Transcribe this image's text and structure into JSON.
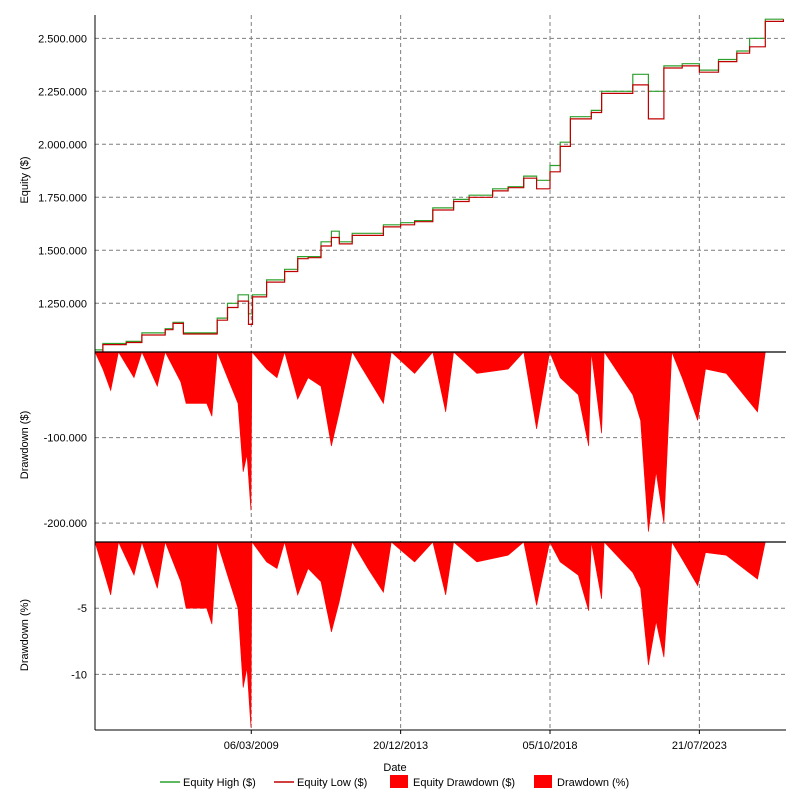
{
  "colors": {
    "equity_high": "#2ca02c",
    "equity_low": "#c00000",
    "drawdown_fill": "#ff0000",
    "grid": "#7f7f7f",
    "axis": "#000000"
  },
  "chart_data": [
    {
      "type": "line",
      "ylabel": "Equity ($)",
      "xlabel": "",
      "grid": true,
      "xlim": [
        "2004-03-01",
        "2026-05-01"
      ],
      "ylim": [
        1020000,
        2610000
      ],
      "yticks": [
        1250000,
        1500000,
        1750000,
        2000000,
        2250000,
        2500000
      ],
      "ytick_labels": [
        "1.250.000",
        "1.500.000",
        "1.750.000",
        "2.000.000",
        "2.250.000",
        "2.500.000"
      ],
      "series": [
        {
          "name": "Equity High ($)",
          "color_key": "equity_high",
          "points": [
            [
              "2004-03-01",
              1030000
            ],
            [
              "2004-06-01",
              1060000
            ],
            [
              "2005-03-01",
              1070000
            ],
            [
              "2005-09-01",
              1110000
            ],
            [
              "2006-06-01",
              1130000
            ],
            [
              "2006-09-01",
              1160000
            ],
            [
              "2007-01-01",
              1110000
            ],
            [
              "2007-10-01",
              1110000
            ],
            [
              "2008-02-01",
              1180000
            ],
            [
              "2008-06-01",
              1250000
            ],
            [
              "2008-10-01",
              1290000
            ],
            [
              "2009-02-01",
              1200000
            ],
            [
              "2009-03-20",
              1290000
            ],
            [
              "2009-09-01",
              1360000
            ],
            [
              "2010-04-01",
              1410000
            ],
            [
              "2010-09-01",
              1470000
            ],
            [
              "2011-01-01",
              1470000
            ],
            [
              "2011-06-01",
              1540000
            ],
            [
              "2011-10-01",
              1590000
            ],
            [
              "2012-01-01",
              1540000
            ],
            [
              "2012-06-01",
              1580000
            ],
            [
              "2013-06-01",
              1620000
            ],
            [
              "2013-12-20",
              1630000
            ],
            [
              "2014-06-01",
              1640000
            ],
            [
              "2015-01-01",
              1700000
            ],
            [
              "2015-09-01",
              1740000
            ],
            [
              "2016-03-01",
              1760000
            ],
            [
              "2016-12-01",
              1790000
            ],
            [
              "2017-06-01",
              1800000
            ],
            [
              "2017-12-01",
              1850000
            ],
            [
              "2018-05-01",
              1830000
            ],
            [
              "2018-10-05",
              1900000
            ],
            [
              "2019-02-01",
              2010000
            ],
            [
              "2019-06-01",
              2130000
            ],
            [
              "2020-02-01",
              2160000
            ],
            [
              "2020-06-01",
              2250000
            ],
            [
              "2021-01-01",
              2250000
            ],
            [
              "2021-06-01",
              2330000
            ],
            [
              "2021-12-01",
              2250000
            ],
            [
              "2022-06-01",
              2370000
            ],
            [
              "2023-01-01",
              2380000
            ],
            [
              "2023-07-21",
              2350000
            ],
            [
              "2024-03-01",
              2400000
            ],
            [
              "2024-10-01",
              2440000
            ],
            [
              "2025-03-01",
              2500000
            ],
            [
              "2025-09-01",
              2590000
            ],
            [
              "2026-04-01",
              2590000
            ]
          ]
        },
        {
          "name": "Equity Low ($)",
          "color_key": "equity_low",
          "points": [
            [
              "2004-03-01",
              1020000
            ],
            [
              "2004-06-01",
              1055000
            ],
            [
              "2005-03-01",
              1065000
            ],
            [
              "2005-09-01",
              1100000
            ],
            [
              "2006-06-01",
              1125000
            ],
            [
              "2006-09-01",
              1155000
            ],
            [
              "2007-01-01",
              1105000
            ],
            [
              "2007-10-01",
              1105000
            ],
            [
              "2008-02-01",
              1170000
            ],
            [
              "2008-06-01",
              1230000
            ],
            [
              "2008-10-01",
              1260000
            ],
            [
              "2009-02-01",
              1150000
            ],
            [
              "2009-03-20",
              1280000
            ],
            [
              "2009-09-01",
              1350000
            ],
            [
              "2010-04-01",
              1400000
            ],
            [
              "2010-09-01",
              1460000
            ],
            [
              "2011-01-01",
              1465000
            ],
            [
              "2011-06-01",
              1520000
            ],
            [
              "2011-10-01",
              1560000
            ],
            [
              "2012-01-01",
              1530000
            ],
            [
              "2012-06-01",
              1570000
            ],
            [
              "2013-06-01",
              1610000
            ],
            [
              "2013-12-20",
              1620000
            ],
            [
              "2014-06-01",
              1635000
            ],
            [
              "2015-01-01",
              1690000
            ],
            [
              "2015-09-01",
              1730000
            ],
            [
              "2016-03-01",
              1750000
            ],
            [
              "2016-12-01",
              1780000
            ],
            [
              "2017-06-01",
              1795000
            ],
            [
              "2017-12-01",
              1840000
            ],
            [
              "2018-05-01",
              1790000
            ],
            [
              "2018-10-05",
              1870000
            ],
            [
              "2019-02-01",
              1990000
            ],
            [
              "2019-06-01",
              2120000
            ],
            [
              "2020-02-01",
              2150000
            ],
            [
              "2020-06-01",
              2240000
            ],
            [
              "2021-01-01",
              2240000
            ],
            [
              "2021-06-01",
              2280000
            ],
            [
              "2021-12-01",
              2120000
            ],
            [
              "2022-06-01",
              2360000
            ],
            [
              "2023-01-01",
              2370000
            ],
            [
              "2023-07-21",
              2340000
            ],
            [
              "2024-03-01",
              2390000
            ],
            [
              "2024-10-01",
              2430000
            ],
            [
              "2025-03-01",
              2460000
            ],
            [
              "2025-09-01",
              2580000
            ],
            [
              "2026-04-01",
              2590000
            ]
          ]
        }
      ]
    },
    {
      "type": "area",
      "ylabel": "Drawdown ($)",
      "grid": true,
      "xlim": [
        "2004-03-01",
        "2026-05-01"
      ],
      "ylim": [
        -222000,
        0
      ],
      "yticks": [
        -100000,
        -200000
      ],
      "ytick_labels": [
        "-100.000",
        "-200.000"
      ],
      "series": [
        {
          "name": "Equity Drawdown ($)",
          "color_key": "drawdown_fill",
          "points": [
            [
              "2004-03-01",
              0
            ],
            [
              "2004-06-01",
              -20000
            ],
            [
              "2004-09-01",
              -45000
            ],
            [
              "2004-12-01",
              0
            ],
            [
              "2005-06-01",
              -30000
            ],
            [
              "2005-09-01",
              0
            ],
            [
              "2006-03-01",
              -40000
            ],
            [
              "2006-06-01",
              0
            ],
            [
              "2006-12-01",
              -35000
            ],
            [
              "2007-02-01",
              -60000
            ],
            [
              "2007-10-01",
              -60000
            ],
            [
              "2007-12-01",
              -75000
            ],
            [
              "2008-02-01",
              0
            ],
            [
              "2008-06-01",
              -30000
            ],
            [
              "2008-10-01",
              -60000
            ],
            [
              "2008-12-01",
              -140000
            ],
            [
              "2009-01-15",
              -120000
            ],
            [
              "2009-03-01",
              -185000
            ],
            [
              "2009-03-15",
              0
            ],
            [
              "2009-09-01",
              -20000
            ],
            [
              "2010-01-01",
              -30000
            ],
            [
              "2010-04-01",
              0
            ],
            [
              "2010-09-01",
              -55000
            ],
            [
              "2011-01-01",
              -30000
            ],
            [
              "2011-06-01",
              -40000
            ],
            [
              "2011-10-01",
              -110000
            ],
            [
              "2012-01-01",
              -70000
            ],
            [
              "2012-06-01",
              0
            ],
            [
              "2012-12-01",
              -30000
            ],
            [
              "2013-06-01",
              -60000
            ],
            [
              "2013-09-01",
              0
            ],
            [
              "2014-06-01",
              -25000
            ],
            [
              "2015-01-01",
              0
            ],
            [
              "2015-06-01",
              -70000
            ],
            [
              "2015-09-01",
              0
            ],
            [
              "2016-06-01",
              -25000
            ],
            [
              "2017-06-01",
              -20000
            ],
            [
              "2017-12-01",
              0
            ],
            [
              "2018-05-01",
              -90000
            ],
            [
              "2018-10-01",
              0
            ],
            [
              "2019-02-01",
              -30000
            ],
            [
              "2019-09-01",
              -50000
            ],
            [
              "2020-01-01",
              -110000
            ],
            [
              "2020-02-01",
              0
            ],
            [
              "2020-06-01",
              -95000
            ],
            [
              "2020-07-01",
              0
            ],
            [
              "2021-06-01",
              -50000
            ],
            [
              "2021-09-01",
              -80000
            ],
            [
              "2021-12-01",
              -210000
            ],
            [
              "2022-03-01",
              -140000
            ],
            [
              "2022-06-01",
              -200000
            ],
            [
              "2022-09-01",
              0
            ],
            [
              "2023-01-01",
              -30000
            ],
            [
              "2023-07-01",
              -80000
            ],
            [
              "2023-10-01",
              -20000
            ],
            [
              "2024-06-01",
              -25000
            ],
            [
              "2025-06-01",
              -70000
            ],
            [
              "2025-09-01",
              0
            ],
            [
              "2026-04-01",
              0
            ]
          ]
        }
      ]
    },
    {
      "type": "area",
      "ylabel": "Drawdown (%)",
      "xlabel": "Date",
      "grid": true,
      "xlim": [
        "2004-03-01",
        "2026-05-01"
      ],
      "ylim": [
        -14.2,
        0
      ],
      "yticks": [
        -5,
        -10
      ],
      "ytick_labels": [
        "-5",
        "-10"
      ],
      "xticks": [
        "2009-03-06",
        "2013-12-20",
        "2018-10-05",
        "2023-07-21"
      ],
      "xtick_labels": [
        "06/03/2009",
        "20/12/2013",
        "05/10/2018",
        "21/07/2023"
      ],
      "series": [
        {
          "name": "Drawdown (%)",
          "color_key": "drawdown_fill",
          "points": [
            [
              "2004-03-01",
              0
            ],
            [
              "2004-06-01",
              -2
            ],
            [
              "2004-09-01",
              -4
            ],
            [
              "2004-12-01",
              0
            ],
            [
              "2005-06-01",
              -2.5
            ],
            [
              "2005-09-01",
              0
            ],
            [
              "2006-03-01",
              -3.5
            ],
            [
              "2006-06-01",
              0
            ],
            [
              "2006-12-01",
              -3
            ],
            [
              "2007-02-01",
              -5
            ],
            [
              "2007-10-01",
              -5
            ],
            [
              "2007-12-01",
              -6.2
            ],
            [
              "2008-02-01",
              0
            ],
            [
              "2008-06-01",
              -2.5
            ],
            [
              "2008-10-01",
              -5
            ],
            [
              "2008-12-01",
              -11
            ],
            [
              "2009-01-15",
              -9.5
            ],
            [
              "2009-03-01",
              -14
            ],
            [
              "2009-03-15",
              0
            ],
            [
              "2009-09-01",
              -1.5
            ],
            [
              "2010-01-01",
              -2
            ],
            [
              "2010-04-01",
              0
            ],
            [
              "2010-09-01",
              -4
            ],
            [
              "2011-01-01",
              -2
            ],
            [
              "2011-06-01",
              -3
            ],
            [
              "2011-10-01",
              -6.8
            ],
            [
              "2012-01-01",
              -4.5
            ],
            [
              "2012-06-01",
              0
            ],
            [
              "2012-12-01",
              -2
            ],
            [
              "2013-06-01",
              -3.8
            ],
            [
              "2013-09-01",
              0
            ],
            [
              "2014-06-01",
              -1.5
            ],
            [
              "2015-01-01",
              0
            ],
            [
              "2015-06-01",
              -4
            ],
            [
              "2015-09-01",
              0
            ],
            [
              "2016-06-01",
              -1.5
            ],
            [
              "2017-06-01",
              -1
            ],
            [
              "2017-12-01",
              0
            ],
            [
              "2018-05-01",
              -4.8
            ],
            [
              "2018-10-01",
              0
            ],
            [
              "2019-02-01",
              -1.5
            ],
            [
              "2019-09-01",
              -2.5
            ],
            [
              "2020-01-01",
              -5.2
            ],
            [
              "2020-02-01",
              0
            ],
            [
              "2020-06-01",
              -4.3
            ],
            [
              "2020-07-01",
              0
            ],
            [
              "2021-06-01",
              -2.3
            ],
            [
              "2021-09-01",
              -3.5
            ],
            [
              "2021-12-01",
              -9.3
            ],
            [
              "2022-03-01",
              -6
            ],
            [
              "2022-06-01",
              -8.7
            ],
            [
              "2022-09-01",
              0
            ],
            [
              "2023-01-01",
              -1.3
            ],
            [
              "2023-07-01",
              -3.3
            ],
            [
              "2023-10-01",
              -0.8
            ],
            [
              "2024-06-01",
              -1
            ],
            [
              "2025-06-01",
              -2.8
            ],
            [
              "2025-09-01",
              0
            ],
            [
              "2026-04-01",
              0
            ]
          ]
        }
      ]
    }
  ],
  "legend": {
    "placement": "bottom",
    "items": [
      {
        "label": "Equity High ($)",
        "kind": "line",
        "color_key": "equity_high"
      },
      {
        "label": "Equity Low ($)",
        "kind": "line",
        "color_key": "equity_low"
      },
      {
        "label": "Equity Drawdown ($)",
        "kind": "box",
        "color_key": "drawdown_fill"
      },
      {
        "label": "Drawdown (%)",
        "kind": "box",
        "color_key": "drawdown_fill"
      }
    ]
  }
}
